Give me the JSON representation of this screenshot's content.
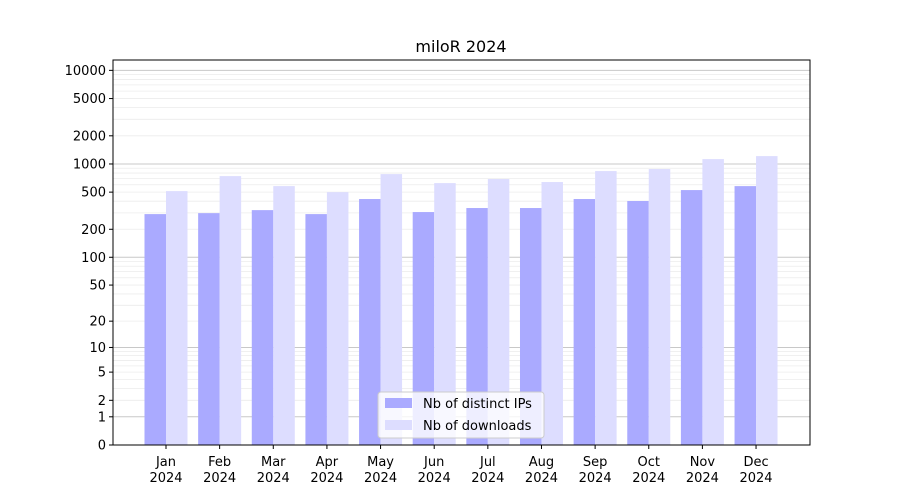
{
  "chart_data": {
    "type": "bar",
    "title": "miloR 2024",
    "xlabel": "",
    "ylabel": "",
    "y_scale": "log(1+y)",
    "ylim": [
      0,
      12900
    ],
    "grid": "horizontal, major and minor",
    "legend_placement": "lower center",
    "categories": [
      "Jan\n2024",
      "Feb\n2024",
      "Mar\n2024",
      "Apr\n2024",
      "May\n2024",
      "Jun\n2024",
      "Jul\n2024",
      "Aug\n2024",
      "Sep\n2024",
      "Oct\n2024",
      "Nov\n2024",
      "Dec\n2024"
    ],
    "y_ticks": [
      0,
      1,
      2,
      5,
      10,
      20,
      50,
      100,
      200,
      500,
      1000,
      2000,
      5000,
      10000
    ],
    "series": [
      {
        "name": "Nb of distinct IPs",
        "color": "#aaaaff",
        "values": [
          291,
          298,
          321,
          291,
          422,
          306,
          338,
          338,
          422,
          402,
          526,
          580
        ]
      },
      {
        "name": "Nb of downloads",
        "color": "#ddddff",
        "values": [
          513,
          742,
          580,
          500,
          780,
          625,
          690,
          641,
          840,
          883,
          1128,
          1214
        ]
      }
    ]
  }
}
